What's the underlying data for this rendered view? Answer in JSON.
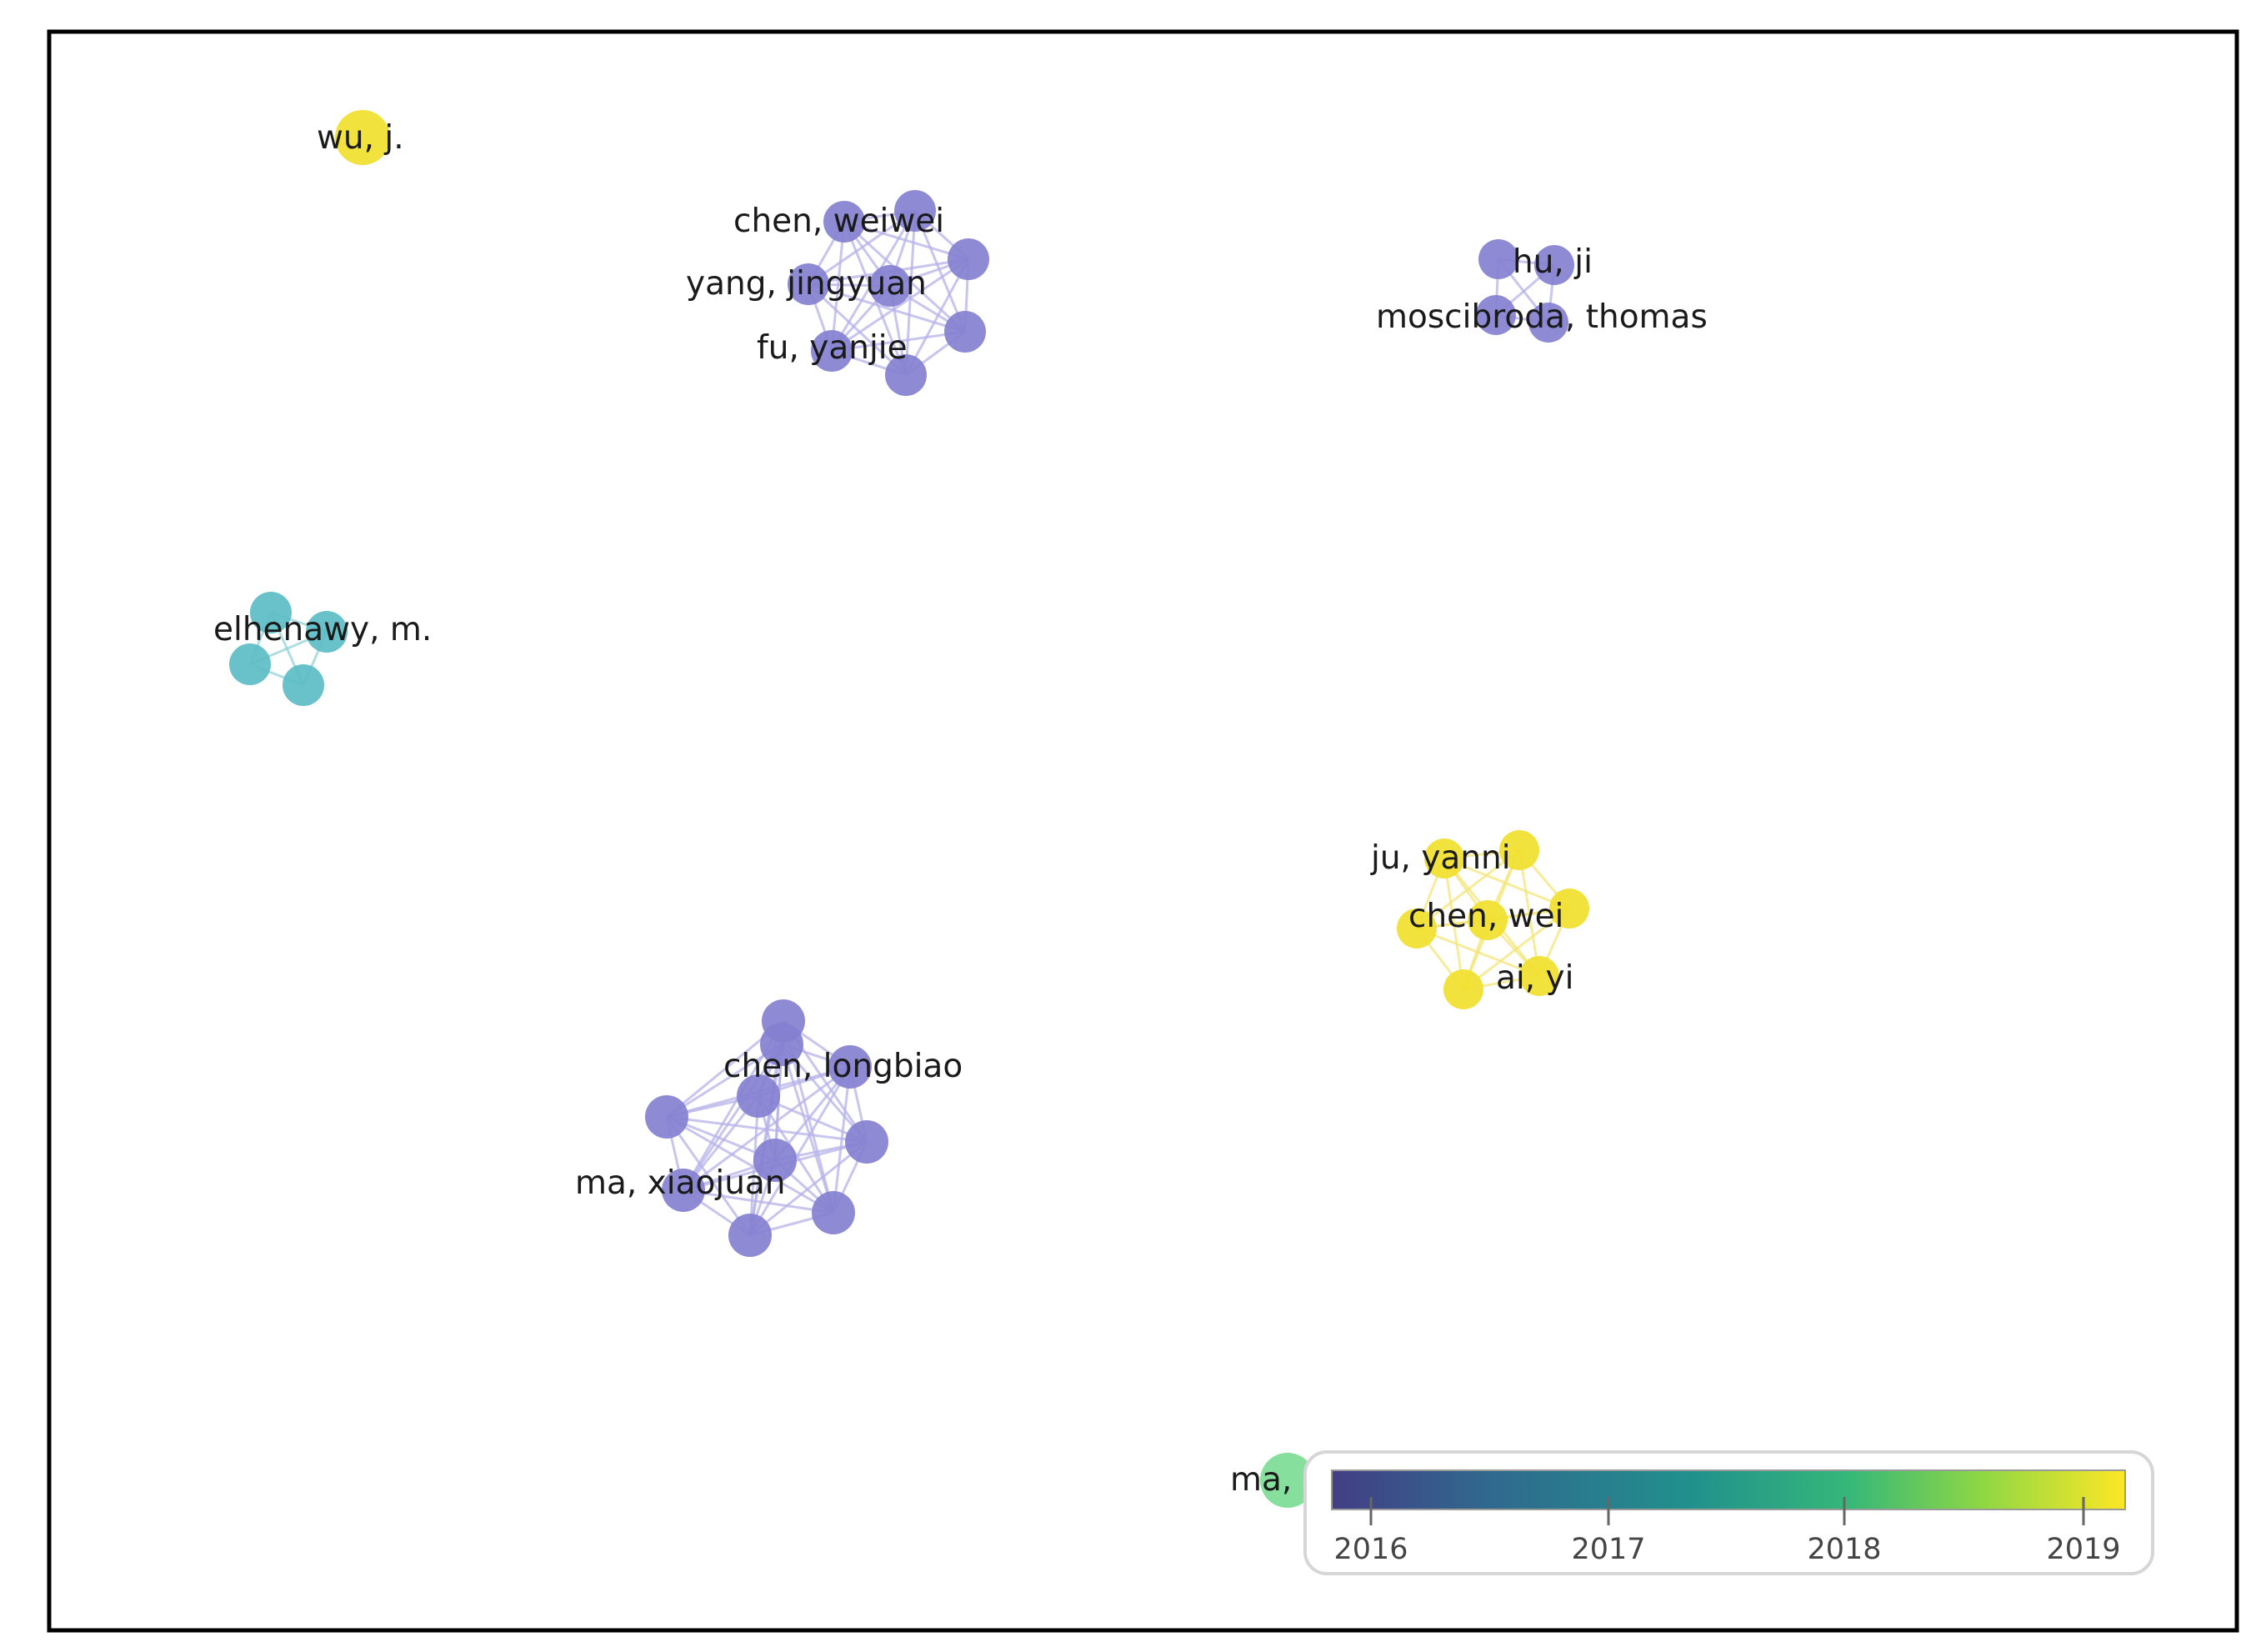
{
  "colors": {
    "frame": "#000000",
    "purple": "#8480d0",
    "purple_link": "#b5b2e8",
    "teal": "#5cbcc4",
    "teal_link": "#93d3d8",
    "yellow": "#f1df2e",
    "yellow_link": "#f3e67a",
    "green": "#7ddc96",
    "legend_border": "#d6d6d6",
    "colorbar_stops": [
      "#433e85",
      "#30698e",
      "#21908d",
      "#35b779",
      "#8fd744",
      "#fde725"
    ]
  },
  "labels": {
    "wu_j": "wu, j.",
    "chen_weiwei": "chen, weiwei",
    "yang_jingyuan": "yang, jingyuan",
    "fu_yanjie": "fu, yanjie",
    "hu_ji": "hu, ji",
    "moscibroda_thomas": "moscibroda, thomas",
    "elhenawy_m": "elhenawy, m.",
    "ju_yanni": "ju, yanni",
    "chen_wei": "chen, wei",
    "ai_yi": "ai, yi",
    "chen_longbiao": "chen, longbiao",
    "ma_xiaojuan": "ma, xiaojuan",
    "ma_x": "ma, x"
  },
  "legend": {
    "title": "",
    "ticks": [
      "2016",
      "2017",
      "2018",
      "2019"
    ]
  }
}
